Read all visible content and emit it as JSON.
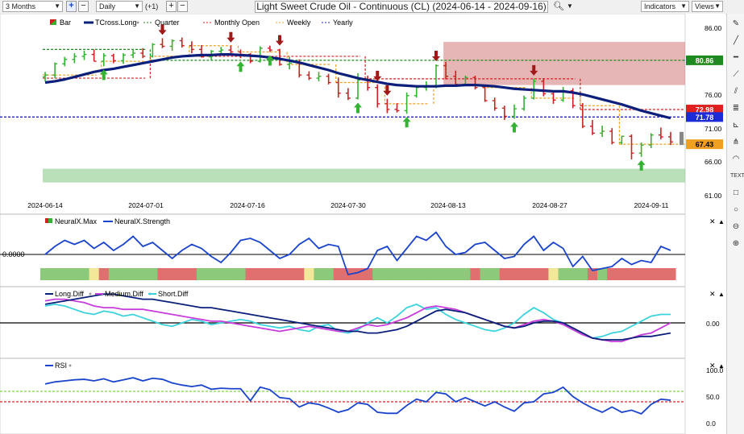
{
  "toolbar": {
    "timeframe": "3 Months",
    "interval": "Daily",
    "offset": "(+1)",
    "plus_label": "+",
    "minus_label": "−",
    "title": "Light Sweet Crude Oil - Continuous (CL) (2024-06-14 - 2024-09-16)",
    "indicators_label": "Indicators",
    "views_label": "Views"
  },
  "main_legend": {
    "bar": "Bar",
    "tcross": "TCross.Long",
    "quarter": "Quarter",
    "monthly": "Monthly Open",
    "weekly": "Weekly",
    "yearly": "Yearly"
  },
  "main_price_labels": [
    "86.00",
    "76.00",
    "71.00",
    "66.00",
    "61.00"
  ],
  "badges": {
    "quarter": "80.86",
    "monthly": "72.98",
    "yearly": "71.78",
    "weekly": "67.43"
  },
  "date_labels": [
    "2024-06-14",
    "2024-07-01",
    "2024-07-16",
    "2024-07-30",
    "2024-08-13",
    "2024-08-27",
    "2024-09-11"
  ],
  "neural_legend": {
    "max": "NeuralX.Max",
    "strength": "NeuralX.Strength"
  },
  "neural_level": "0.0000",
  "diff_legend": {
    "long": "Long.Diff",
    "medium": "Medium.Diff",
    "short": "Short.Diff"
  },
  "diff_level": "0.00",
  "rsi_legend": {
    "rsi": "RSI"
  },
  "rsi_levels": [
    "100.0",
    "50.0",
    "0.0"
  ],
  "colors": {
    "up": "#33b233",
    "down": "#cc2222",
    "tcross": "#0b1f7a",
    "quarter": "#1f8a1f",
    "monthly": "#d62020",
    "weekly": "#f0a020",
    "yearly": "#2222cc",
    "neural_blue": "#1a44cc",
    "long": "#0b1f7a",
    "medium": "#c83cdc",
    "short": "#3cd2dc"
  },
  "chart_data": [
    {
      "type": "ohlc",
      "title": "Light Sweet Crude Oil - Continuous (CL)",
      "x": [
        "2024-06-14",
        "2024-06-17",
        "2024-06-18",
        "2024-06-19",
        "2024-06-20",
        "2024-06-21",
        "2024-06-24",
        "2024-06-25",
        "2024-06-26",
        "2024-06-27",
        "2024-06-28",
        "2024-07-01",
        "2024-07-02",
        "2024-07-03",
        "2024-07-05",
        "2024-07-08",
        "2024-07-09",
        "2024-07-10",
        "2024-07-11",
        "2024-07-12",
        "2024-07-15",
        "2024-07-16",
        "2024-07-17",
        "2024-07-18",
        "2024-07-19",
        "2024-07-22",
        "2024-07-23",
        "2024-07-24",
        "2024-07-25",
        "2024-07-26",
        "2024-07-29",
        "2024-07-30",
        "2024-07-31",
        "2024-08-01",
        "2024-08-02",
        "2024-08-05",
        "2024-08-06",
        "2024-08-07",
        "2024-08-08",
        "2024-08-09",
        "2024-08-12",
        "2024-08-13",
        "2024-08-14",
        "2024-08-15",
        "2024-08-16",
        "2024-08-19",
        "2024-08-20",
        "2024-08-21",
        "2024-08-22",
        "2024-08-23",
        "2024-08-26",
        "2024-08-27",
        "2024-08-28",
        "2024-08-29",
        "2024-08-30",
        "2024-09-03",
        "2024-09-04",
        "2024-09-05",
        "2024-09-06",
        "2024-09-09",
        "2024-09-10",
        "2024-09-11",
        "2024-09-12",
        "2024-09-13",
        "2024-09-16"
      ],
      "open": [
        78.2,
        78.5,
        80.3,
        81.0,
        81.5,
        81.8,
        80.7,
        81.6,
        80.8,
        81.7,
        82.0,
        81.5,
        83.4,
        83.1,
        84.0,
        83.2,
        82.6,
        81.4,
        82.3,
        82.5,
        82.2,
        81.8,
        80.7,
        82.8,
        82.5,
        80.2,
        80.4,
        78.5,
        78.0,
        78.3,
        77.3,
        75.6,
        74.8,
        77.7,
        76.5,
        73.9,
        73.0,
        72.8,
        75.2,
        76.5,
        76.8,
        80.0,
        78.3,
        77.0,
        78.1,
        76.5,
        74.4,
        73.2,
        71.9,
        73.1,
        74.8,
        77.5,
        75.5,
        74.5,
        76.0,
        73.6,
        70.3,
        69.2,
        69.5,
        67.7,
        68.7,
        66.0,
        67.3,
        68.9,
        68.6
      ],
      "high": [
        79.0,
        80.5,
        81.4,
        82.0,
        82.4,
        82.6,
        82.0,
        81.9,
        82.0,
        82.6,
        82.8,
        83.6,
        84.4,
        84.2,
        84.5,
        83.9,
        83.3,
        82.5,
        83.0,
        83.2,
        82.6,
        82.0,
        83.1,
        83.2,
        82.7,
        81.4,
        81.0,
        79.1,
        79.0,
        78.7,
        78.1,
        76.4,
        78.8,
        78.4,
        77.0,
        74.7,
        74.0,
        75.7,
        76.9,
        77.5,
        80.2,
        80.6,
        79.2,
        78.4,
        78.4,
        77.0,
        74.9,
        73.6,
        73.8,
        75.2,
        77.9,
        78.0,
        76.0,
        76.6,
        76.4,
        74.0,
        71.3,
        70.4,
        70.0,
        68.8,
        69.0,
        67.7,
        69.2,
        70.1,
        69.4
      ],
      "low": [
        77.5,
        78.0,
        79.9,
        80.4,
        80.9,
        80.7,
        79.9,
        80.4,
        80.3,
        81.2,
        81.2,
        81.3,
        82.8,
        82.4,
        82.9,
        82.0,
        81.3,
        80.9,
        81.9,
        82.0,
        81.2,
        80.4,
        80.5,
        82.2,
        80.0,
        79.4,
        78.1,
        77.7,
        77.5,
        77.0,
        74.9,
        74.5,
        74.6,
        76.0,
        73.3,
        72.4,
        72.5,
        72.3,
        74.9,
        76.0,
        76.4,
        77.8,
        76.6,
        76.9,
        76.2,
        74.2,
        72.8,
        71.3,
        71.5,
        72.8,
        74.6,
        75.1,
        73.9,
        74.2,
        73.2,
        70.0,
        68.9,
        68.6,
        67.4,
        67.4,
        65.0,
        65.4,
        66.8,
        68.2,
        67.3
      ],
      "close": [
        78.5,
        80.3,
        81.0,
        81.5,
        81.8,
        80.7,
        81.6,
        80.8,
        81.7,
        82.0,
        81.5,
        83.4,
        83.1,
        84.0,
        83.2,
        82.6,
        81.4,
        82.3,
        82.5,
        82.2,
        81.8,
        80.7,
        82.8,
        82.5,
        80.2,
        80.4,
        78.5,
        78.0,
        78.3,
        77.3,
        75.6,
        74.8,
        77.7,
        76.5,
        73.9,
        73.0,
        72.8,
        75.2,
        76.5,
        76.8,
        80.0,
        78.3,
        77.0,
        78.1,
        76.5,
        74.4,
        73.2,
        71.9,
        73.1,
        74.8,
        77.5,
        75.5,
        74.5,
        76.0,
        73.6,
        70.3,
        69.2,
        69.5,
        67.7,
        68.7,
        66.0,
        67.3,
        68.9,
        68.6,
        67.8
      ],
      "xlabel": "",
      "ylabel": "",
      "ylim": [
        60.5,
        87.5
      ],
      "series": [
        {
          "name": "TCross.Long",
          "values": [
            77.3,
            77.5,
            77.8,
            78.2,
            78.6,
            79.0,
            79.3,
            79.5,
            79.8,
            80.1,
            80.4,
            80.7,
            81.0,
            81.3,
            81.5,
            81.6,
            81.7,
            81.7,
            81.8,
            81.8,
            81.7,
            81.6,
            81.5,
            81.3,
            81.1,
            80.8,
            80.5,
            80.1,
            79.7,
            79.3,
            78.8,
            78.4,
            78.0,
            77.7,
            77.4,
            77.1,
            76.9,
            76.8,
            76.7,
            76.7,
            76.7,
            76.8,
            76.8,
            76.9,
            76.9,
            76.8,
            76.7,
            76.5,
            76.3,
            76.2,
            76.1,
            76.0,
            75.9,
            75.9,
            75.7,
            75.4,
            75.0,
            74.6,
            74.2,
            73.8,
            73.3,
            72.8,
            72.4,
            72.0,
            71.6
          ]
        },
        {
          "name": "Quarter",
          "segments": [
            {
              "x0": "2024-06-14",
              "x1": "2024-06-28",
              "value": 82.6
            },
            {
              "x0": "2024-07-01",
              "x1": "2024-09-16",
              "value": 80.86
            }
          ]
        },
        {
          "name": "Monthly Open",
          "segments": [
            {
              "x0": "2024-06-14",
              "x1": "2024-06-28",
              "value": 78.0
            },
            {
              "x0": "2024-07-01",
              "x1": "2024-07-31",
              "value": 81.5
            },
            {
              "x0": "2024-08-01",
              "x1": "2024-08-30",
              "value": 77.9
            },
            {
              "x0": "2024-09-03",
              "x1": "2024-09-16",
              "value": 72.98
            }
          ]
        },
        {
          "name": "Weekly",
          "segments": [
            {
              "x0": "2024-06-14",
              "x1": "2024-06-21",
              "value": 78.5
            },
            {
              "x0": "2024-06-24",
              "x1": "2024-06-28",
              "value": 80.7
            },
            {
              "x0": "2024-07-01",
              "x1": "2024-07-05",
              "value": 81.5
            },
            {
              "x0": "2024-07-08",
              "x1": "2024-07-12",
              "value": 83.2
            },
            {
              "x0": "2024-07-15",
              "x1": "2024-07-19",
              "value": 82.2
            },
            {
              "x0": "2024-07-22",
              "x1": "2024-07-26",
              "value": 80.2
            },
            {
              "x0": "2024-07-29",
              "x1": "2024-08-02",
              "value": 77.3
            },
            {
              "x0": "2024-08-05",
              "x1": "2024-08-09",
              "value": 73.9
            },
            {
              "x0": "2024-08-12",
              "x1": "2024-08-16",
              "value": 76.8
            },
            {
              "x0": "2024-08-19",
              "x1": "2024-08-23",
              "value": 76.5
            },
            {
              "x0": "2024-08-26",
              "x1": "2024-08-30",
              "value": 74.8
            },
            {
              "x0": "2024-09-03",
              "x1": "2024-09-06",
              "value": 73.6
            },
            {
              "x0": "2024-09-09",
              "x1": "2024-09-16",
              "value": 67.43
            }
          ]
        },
        {
          "name": "Yearly",
          "value": 71.78
        }
      ],
      "zones": [
        {
          "y0": 76.9,
          "y1": 83.8,
          "x0": "2024-08-13",
          "x1": "2024-09-16",
          "color": "#c85a5a"
        },
        {
          "y0": 61.3,
          "y1": 63.5,
          "x0": "2024-06-14",
          "x1": "2024-09-16",
          "color": "#66bb66"
        }
      ],
      "signals_up": [
        "2024-06-24",
        "2024-07-15",
        "2024-07-18",
        "2024-07-31",
        "2024-08-07",
        "2024-08-22",
        "2024-09-11"
      ],
      "signals_down": [
        "2024-07-02",
        "2024-07-12",
        "2024-07-19",
        "2024-08-02",
        "2024-08-05",
        "2024-08-12",
        "2024-08-26"
      ]
    },
    {
      "type": "line",
      "series": [
        {
          "name": "NeuralX.Strength",
          "values": [
            0.0,
            0.4,
            0.7,
            0.5,
            0.7,
            0.3,
            0.6,
            0.2,
            0.5,
            0.9,
            0.4,
            0.6,
            0.2,
            -0.2,
            0.2,
            0.5,
            0.3,
            -0.1,
            -0.4,
            0.1,
            0.7,
            0.8,
            0.6,
            0.2,
            -0.2,
            0.0,
            0.5,
            0.8,
            0.3,
            0.5,
            0.4,
            -1.0,
            -0.9,
            -0.7,
            0.2,
            0.4,
            -0.3,
            0.3,
            0.9,
            0.7,
            1.1,
            0.4,
            0.0,
            0.1,
            0.5,
            0.6,
            0.2,
            -0.2,
            -0.1,
            0.5,
            0.9,
            0.2,
            0.6,
            0.3,
            -0.6,
            -0.1,
            -0.8,
            -0.7,
            -0.6,
            -0.2,
            -0.5,
            -0.3,
            -0.4,
            0.4,
            0.2
          ]
        },
        {
          "name": "NeuralX.Max",
          "values": [
            1,
            1,
            1,
            1,
            1,
            0,
            -1,
            1,
            1,
            1,
            1,
            1,
            -1,
            -1,
            -1,
            -1,
            1,
            1,
            1,
            1,
            1,
            -1,
            -1,
            -1,
            -1,
            -1,
            -1,
            0,
            1,
            1,
            -1,
            -1,
            -1,
            -1,
            1,
            1,
            1,
            1,
            1,
            1,
            1,
            1,
            1,
            1,
            -1,
            1,
            1,
            -1,
            -1,
            -1,
            -1,
            -1,
            0,
            1,
            1,
            1,
            -1,
            1,
            -1,
            -1,
            -1,
            -1,
            -1,
            -1,
            -1
          ]
        }
      ],
      "levels": [
        0.0
      ]
    },
    {
      "type": "line",
      "series": [
        {
          "name": "Long.Diff",
          "values": [
            1.1,
            1.2,
            1.3,
            1.4,
            1.5,
            1.6,
            1.7,
            1.7,
            1.6,
            1.5,
            1.4,
            1.4,
            1.3,
            1.2,
            1.1,
            1.0,
            0.9,
            0.9,
            0.8,
            0.7,
            0.6,
            0.5,
            0.4,
            0.3,
            0.2,
            0.1,
            0.0,
            -0.1,
            -0.2,
            -0.3,
            -0.4,
            -0.5,
            -0.5,
            -0.6,
            -0.6,
            -0.5,
            -0.4,
            -0.2,
            0.1,
            0.4,
            0.7,
            0.8,
            0.7,
            0.6,
            0.4,
            0.2,
            0.0,
            -0.2,
            -0.3,
            -0.2,
            0.0,
            0.1,
            0.1,
            0.0,
            -0.3,
            -0.6,
            -0.9,
            -1.0,
            -1.0,
            -1.0,
            -0.9,
            -0.8,
            -0.8,
            -0.7,
            -0.6
          ]
        },
        {
          "name": "Medium.Diff",
          "values": [
            1.3,
            1.4,
            1.4,
            1.3,
            1.2,
            1.0,
            0.9,
            0.9,
            0.8,
            0.8,
            0.8,
            0.7,
            0.6,
            0.5,
            0.4,
            0.3,
            0.2,
            0.1,
            0.1,
            0.0,
            -0.1,
            -0.2,
            -0.3,
            -0.4,
            -0.5,
            -0.4,
            -0.3,
            -0.2,
            -0.3,
            -0.4,
            -0.5,
            -0.5,
            -0.3,
            -0.1,
            -0.2,
            -0.1,
            0.1,
            0.3,
            0.6,
            0.9,
            1.0,
            0.9,
            0.8,
            0.6,
            0.4,
            0.2,
            0.0,
            -0.2,
            -0.3,
            -0.1,
            0.1,
            0.2,
            0.1,
            -0.1,
            -0.4,
            -0.7,
            -0.9,
            -1.0,
            -1.1,
            -1.1,
            -0.9,
            -0.7,
            -0.6,
            -0.3,
            0.0
          ]
        },
        {
          "name": "Short.Diff",
          "values": [
            1.0,
            1.1,
            1.0,
            0.8,
            0.6,
            0.5,
            0.7,
            0.6,
            0.4,
            0.5,
            0.3,
            0.1,
            -0.1,
            -0.2,
            0.0,
            0.2,
            0.1,
            -0.1,
            0.0,
            0.1,
            0.2,
            0.1,
            -0.1,
            -0.2,
            -0.3,
            -0.2,
            -0.4,
            -0.5,
            -0.2,
            -0.1,
            -0.5,
            -0.6,
            -0.4,
            0.0,
            0.3,
            0.0,
            0.4,
            0.9,
            1.1,
            0.8,
            0.9,
            0.5,
            0.2,
            0.0,
            -0.2,
            -0.4,
            -0.5,
            -0.3,
            0.0,
            0.5,
            0.9,
            0.6,
            0.2,
            0.0,
            -0.4,
            -0.7,
            -0.9,
            -0.8,
            -0.6,
            -0.5,
            -0.2,
            0.1,
            0.4,
            0.5,
            0.5
          ]
        }
      ],
      "levels": [
        0.0
      ]
    },
    {
      "type": "line",
      "series": [
        {
          "name": "RSI",
          "values": [
            74,
            78,
            80,
            82,
            83,
            80,
            84,
            78,
            82,
            86,
            80,
            85,
            83,
            76,
            72,
            69,
            72,
            64,
            66,
            65,
            65,
            42,
            68,
            63,
            48,
            46,
            30,
            38,
            35,
            28,
            20,
            25,
            38,
            35,
            20,
            18,
            18,
            33,
            45,
            40,
            58,
            55,
            40,
            48,
            40,
            32,
            40,
            30,
            22,
            38,
            40,
            55,
            58,
            68,
            50,
            38,
            28,
            20,
            30,
            20,
            24,
            17,
            35,
            45,
            43
          ]
        }
      ],
      "levels": [
        60,
        40
      ],
      "ylim": [
        0,
        100
      ]
    }
  ]
}
